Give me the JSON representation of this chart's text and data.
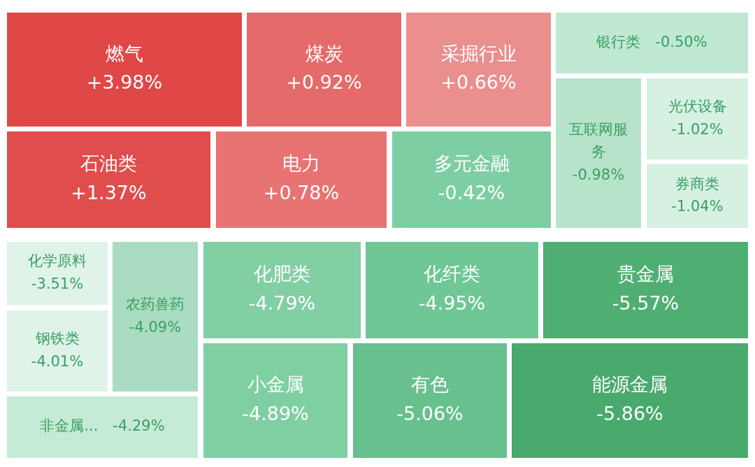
{
  "chart_data": {
    "type": "other",
    "categories": [
      "燃气",
      "煤炭",
      "采掘行业",
      "石油类",
      "电力",
      "多元金融",
      "银行类",
      "互联网服务",
      "光伏设备",
      "券商类",
      "化学原料",
      "钢铁类",
      "农药兽药",
      "非金属...",
      "化肥类",
      "化纤类",
      "贵金属",
      "小金属",
      "有色",
      "能源金属"
    ],
    "values": [
      3.98,
      0.92,
      0.66,
      1.37,
      0.78,
      -0.42,
      -0.5,
      -0.98,
      -1.02,
      -1.04,
      -3.51,
      -4.01,
      -4.09,
      -4.29,
      -4.79,
      -4.95,
      -5.57,
      -4.89,
      -5.06,
      -5.86
    ],
    "value_labels": [
      "+3.98%",
      "+0.92%",
      "+0.66%",
      "+1.37%",
      "+0.78%",
      "-0.42%",
      "-0.50%",
      "-0.98%",
      "-1.02%",
      "-1.04%",
      "-3.51%",
      "-4.01%",
      "-4.09%",
      "-4.29%",
      "-4.79%",
      "-4.95%",
      "-5.57%",
      "-4.89%",
      "-5.06%",
      "-5.86%"
    ],
    "colors": [
      "#e04848",
      "#e56a6a",
      "#eb8e8e",
      "#e04d4d",
      "#e87373",
      "#7dcfa3",
      "#bfe9d2",
      "#b6e3ca",
      "#d6f1e2",
      "#d6f1e2",
      "#dff3e8",
      "#dff3e8",
      "#a9dcc0",
      "#c5ead5",
      "#82cfa4",
      "#6fc795",
      "#4faf73",
      "#7fcfa3",
      "#68c08f",
      "#4aa96d"
    ]
  }
}
